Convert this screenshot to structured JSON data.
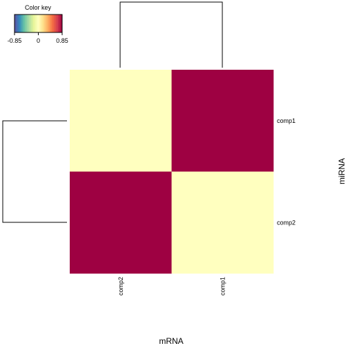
{
  "chart_data": {
    "type": "heatmap",
    "title": "",
    "xlabel": "mRNA",
    "ylabel": "miRNA",
    "columns": [
      "comp2",
      "comp1"
    ],
    "rows": [
      "comp1",
      "comp2"
    ],
    "values": [
      [
        0.0,
        0.85
      ],
      [
        0.85,
        0.0
      ]
    ],
    "color_key": {
      "title": "Color key",
      "range": [
        -0.85,
        0.85
      ],
      "ticks": [
        "-0.85",
        "0",
        "0.85"
      ],
      "colors": [
        "#5E4FA2",
        "#3288BD",
        "#66C2A5",
        "#ABDDA4",
        "#E6F598",
        "#FFFFBF",
        "#FEE08B",
        "#FDAE61",
        "#F46D43",
        "#D53E4F",
        "#9E0142"
      ]
    },
    "row_dendrogram": true,
    "column_dendrogram": true
  }
}
